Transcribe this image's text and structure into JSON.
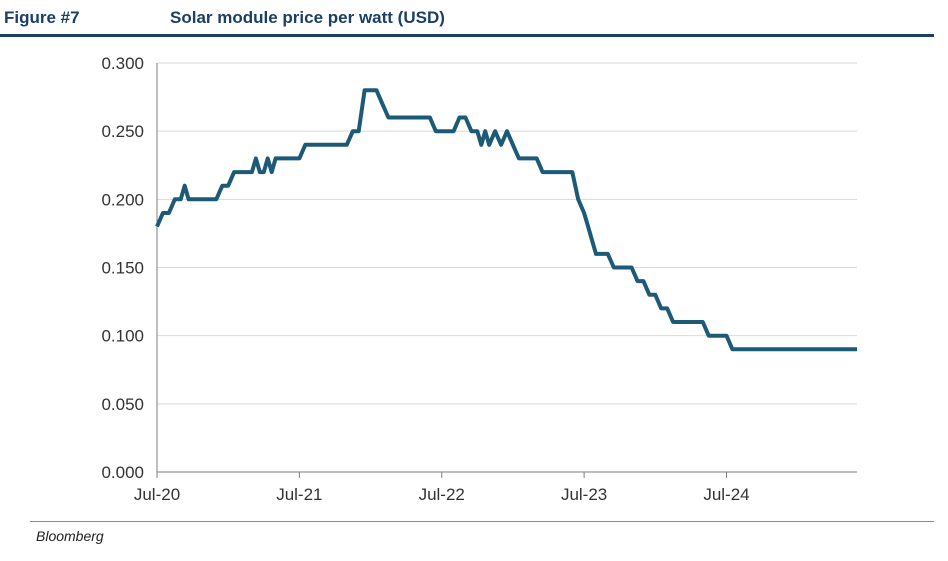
{
  "header": {
    "figure_label": "Figure #7",
    "title": "Solar module price per watt (USD)"
  },
  "footer": {
    "source": "Bloomberg"
  },
  "colors": {
    "line": "#1d5a78",
    "title": "#1c3f66",
    "grid": "#d9d9d9",
    "axis": "#7f7f7f"
  },
  "chart_data": {
    "type": "line",
    "title": "Solar module price per watt (USD)",
    "xlabel": "",
    "ylabel": "",
    "ylim": [
      0,
      0.3
    ],
    "yticks": [
      "0.000",
      "0.050",
      "0.100",
      "0.150",
      "0.200",
      "0.250",
      "0.300"
    ],
    "xticks": [
      "Jul-20",
      "Jul-21",
      "Jul-22",
      "Jul-23",
      "Jul-24"
    ],
    "xlim": [
      "2020-07",
      "2025-06"
    ],
    "grid": true,
    "legend": "none",
    "series": [
      {
        "points": [
          [
            "2020-07",
            0.18
          ],
          [
            "2020-07",
            0.19
          ],
          [
            "2020-08",
            0.19
          ],
          [
            "2020-08",
            0.2
          ],
          [
            "2020-09",
            0.2
          ],
          [
            "2020-09",
            0.21
          ],
          [
            "2020-09",
            0.2
          ],
          [
            "2020-10",
            0.2
          ],
          [
            "2020-11",
            0.2
          ],
          [
            "2020-12",
            0.2
          ],
          [
            "2020-12",
            0.21
          ],
          [
            "2021-01",
            0.21
          ],
          [
            "2021-01",
            0.22
          ],
          [
            "2021-02",
            0.22
          ],
          [
            "2021-03",
            0.22
          ],
          [
            "2021-03",
            0.23
          ],
          [
            "2021-03",
            0.22
          ],
          [
            "2021-04",
            0.22
          ],
          [
            "2021-04",
            0.23
          ],
          [
            "2021-04",
            0.22
          ],
          [
            "2021-05",
            0.23
          ],
          [
            "2021-06",
            0.23
          ],
          [
            "2021-07",
            0.23
          ],
          [
            "2021-07",
            0.24
          ],
          [
            "2021-08",
            0.24
          ],
          [
            "2021-09",
            0.24
          ],
          [
            "2021-10",
            0.24
          ],
          [
            "2021-11",
            0.24
          ],
          [
            "2021-11",
            0.25
          ],
          [
            "2021-12",
            0.25
          ],
          [
            "2021-12",
            0.28
          ],
          [
            "2022-01",
            0.28
          ],
          [
            "2022-01",
            0.28
          ],
          [
            "2022-02",
            0.27
          ],
          [
            "2022-02",
            0.26
          ],
          [
            "2022-03",
            0.26
          ],
          [
            "2022-04",
            0.26
          ],
          [
            "2022-05",
            0.26
          ],
          [
            "2022-06",
            0.26
          ],
          [
            "2022-06",
            0.25
          ],
          [
            "2022-07",
            0.25
          ],
          [
            "2022-08",
            0.25
          ],
          [
            "2022-08",
            0.26
          ],
          [
            "2022-09",
            0.26
          ],
          [
            "2022-09",
            0.25
          ],
          [
            "2022-10",
            0.25
          ],
          [
            "2022-10",
            0.24
          ],
          [
            "2022-10",
            0.25
          ],
          [
            "2022-11",
            0.24
          ],
          [
            "2022-11",
            0.25
          ],
          [
            "2022-12",
            0.24
          ],
          [
            "2022-12",
            0.25
          ],
          [
            "2023-01",
            0.24
          ],
          [
            "2023-01",
            0.23
          ],
          [
            "2023-02",
            0.23
          ],
          [
            "2023-03",
            0.23
          ],
          [
            "2023-03",
            0.22
          ],
          [
            "2023-04",
            0.22
          ],
          [
            "2023-05",
            0.22
          ],
          [
            "2023-06",
            0.22
          ],
          [
            "2023-06",
            0.2
          ],
          [
            "2023-07",
            0.19
          ],
          [
            "2023-07",
            0.18
          ],
          [
            "2023-07",
            0.17
          ],
          [
            "2023-08",
            0.16
          ],
          [
            "2023-09",
            0.16
          ],
          [
            "2023-09",
            0.15
          ],
          [
            "2023-10",
            0.15
          ],
          [
            "2023-11",
            0.15
          ],
          [
            "2023-11",
            0.14
          ],
          [
            "2023-12",
            0.14
          ],
          [
            "2023-12",
            0.13
          ],
          [
            "2024-01",
            0.13
          ],
          [
            "2024-01",
            0.12
          ],
          [
            "2024-02",
            0.12
          ],
          [
            "2024-02",
            0.11
          ],
          [
            "2024-03",
            0.11
          ],
          [
            "2024-04",
            0.11
          ],
          [
            "2024-05",
            0.11
          ],
          [
            "2024-05",
            0.1
          ],
          [
            "2024-06",
            0.1
          ],
          [
            "2024-07",
            0.1
          ],
          [
            "2024-07",
            0.09
          ],
          [
            "2024-08",
            0.09
          ],
          [
            "2024-10",
            0.09
          ],
          [
            "2024-12",
            0.09
          ],
          [
            "2025-02",
            0.09
          ],
          [
            "2025-04",
            0.09
          ],
          [
            "2025-06",
            0.09
          ]
        ]
      }
    ]
  }
}
